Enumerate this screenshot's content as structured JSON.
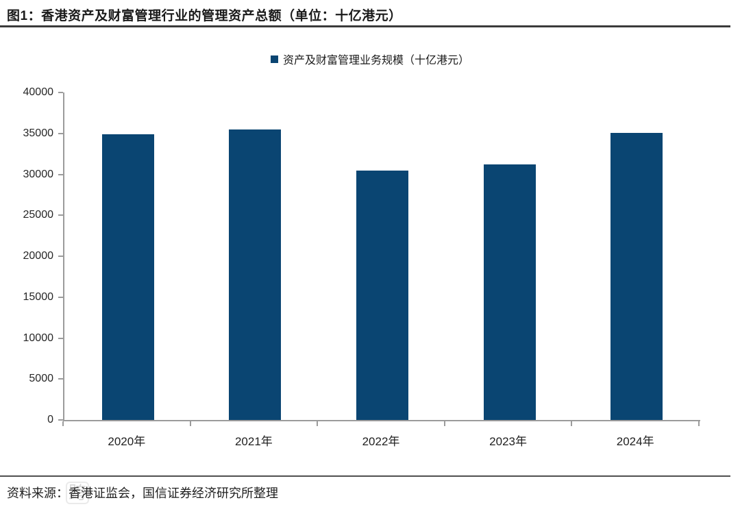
{
  "page": {
    "figure_title": "图1：香港资产及财富管理行业的管理资产总额（单位：十亿港元）",
    "source_note": "资料来源：香港证监会，国信证券经济研究所整理",
    "watermark_glyph": "跨"
  },
  "colors": {
    "bar": "#0a4572",
    "axis": "#9b9b9b",
    "title_rule": "#3a3a3a",
    "footer_rule": "#4f4f4f"
  },
  "chart_data": {
    "type": "bar",
    "title": "图1：香港资产及财富管理行业的管理资产总额（单位：十亿港元）",
    "legend": "资产及财富管理业务规模（十亿港元）",
    "legend_position": "top-center",
    "categories": [
      "2020年",
      "2021年",
      "2022年",
      "2023年",
      "2024年"
    ],
    "values": [
      34900,
      35500,
      30500,
      31200,
      35100
    ],
    "xlabel": "",
    "ylabel": "",
    "ylim": [
      0,
      40000
    ],
    "y_ticks": [
      0,
      5000,
      10000,
      15000,
      20000,
      25000,
      30000,
      35000,
      40000
    ],
    "grid": false,
    "bar_color": "#0a4572"
  }
}
